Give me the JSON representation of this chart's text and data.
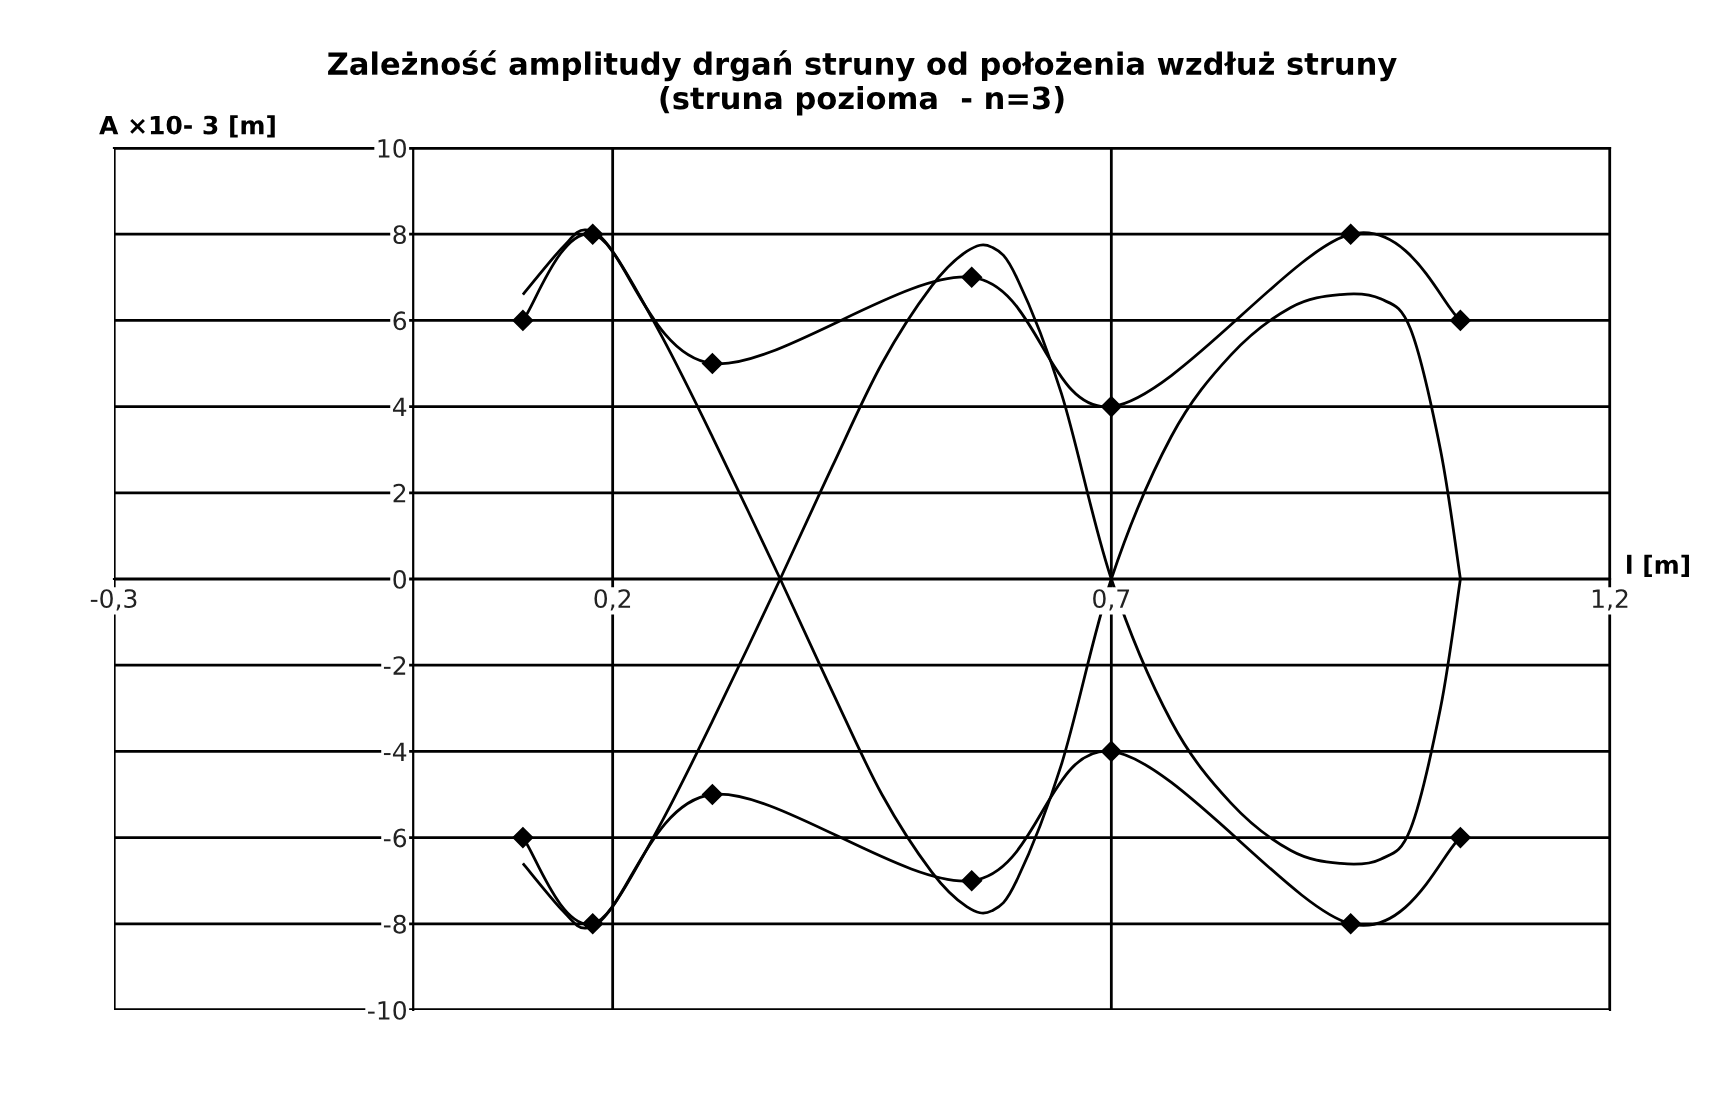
{
  "chart_data": {
    "type": "line",
    "title": "Zależność amplitudy drgań struny od położenia wzdłuż struny\n(struna pozioma  - n=3)",
    "xlabel": "l [m]",
    "ylabel": "A ×10- 3 [m]",
    "xlim": [
      -0.3,
      1.2
    ],
    "xticks": [
      {
        "value": -0.3,
        "label": "-0,3"
      },
      {
        "value": 0.2,
        "label": "0,2"
      },
      {
        "value": 0.7,
        "label": "0,7"
      },
      {
        "value": 1.2,
        "label": "1,2"
      }
    ],
    "ylim": [
      -10,
      10
    ],
    "yticks": [
      -10,
      -8,
      -6,
      -4,
      -2,
      0,
      2,
      4,
      6,
      8,
      10
    ],
    "grid": true,
    "legend": false,
    "series": [
      {
        "color": "#000000",
        "marker": "none",
        "x": [
          0.11,
          0.15,
          0.173,
          0.2,
          0.25,
          0.3,
          0.368,
          0.42,
          0.47,
          0.52,
          0.555,
          0.58,
          0.605,
          0.65,
          0.7,
          0.76,
          0.82,
          0.88,
          0.93,
          0.97,
          1.0,
          1.03,
          1.05
        ],
        "values": [
          6.6,
          7.7,
          8.1,
          7.6,
          5.6,
          3.3,
          0,
          -2.6,
          -5.0,
          -6.8,
          -7.6,
          -7.7,
          -7.0,
          -4.3,
          0,
          3.3,
          5.2,
          6.3,
          6.6,
          6.5,
          5.8,
          3.0,
          0
        ]
      },
      {
        "color": "#000000",
        "marker": "none",
        "x": [
          0.11,
          0.15,
          0.173,
          0.2,
          0.25,
          0.3,
          0.368,
          0.42,
          0.47,
          0.52,
          0.555,
          0.58,
          0.605,
          0.65,
          0.7,
          0.76,
          0.82,
          0.88,
          0.93,
          0.97,
          1.0,
          1.03,
          1.05
        ],
        "values": [
          -6.6,
          -7.7,
          -8.1,
          -7.6,
          -5.6,
          -3.3,
          0,
          2.6,
          5.0,
          6.8,
          7.6,
          7.7,
          7.0,
          4.3,
          0,
          -3.3,
          -5.2,
          -6.3,
          -6.6,
          -6.5,
          -5.8,
          -3.0,
          0
        ]
      },
      {
        "color": "#000000",
        "marker": "diamond",
        "x": [
          0.11,
          0.18,
          0.3,
          0.56,
          0.7,
          0.94,
          1.05
        ],
        "values": [
          -6,
          -8,
          -5,
          -7,
          -4,
          -8,
          -6
        ]
      },
      {
        "color": "#000000",
        "marker": "diamond",
        "x": [
          0.11,
          0.18,
          0.3,
          0.56,
          0.7,
          0.94,
          1.05
        ],
        "values": [
          6,
          8,
          5,
          7,
          4,
          8,
          6
        ]
      }
    ]
  }
}
